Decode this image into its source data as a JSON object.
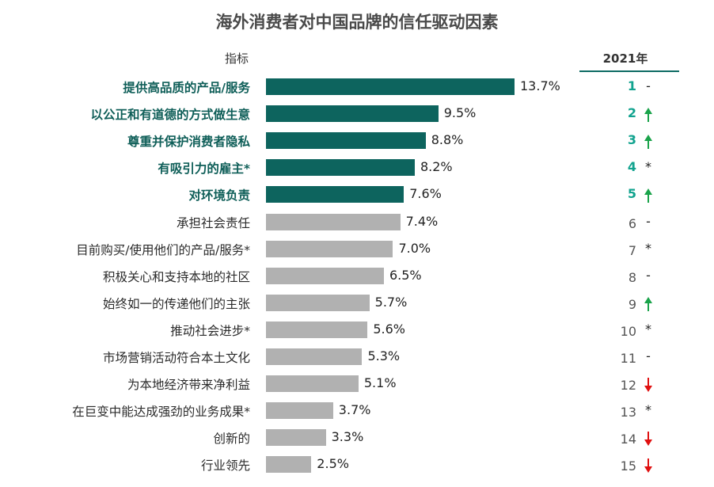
{
  "chart_data": {
    "type": "bar",
    "title": "海外消费者对中国品牌的信任驱动因素",
    "column_header": "指标",
    "rank_header": "2021年",
    "xlim": [
      0,
      15
    ],
    "categories": [
      "提供高品质的产品/服务",
      "以公正和有道德的方式做生意",
      "尊重并保护消费者隐私",
      "有吸引力的雇主*",
      "对环境负责",
      "承担社会责任",
      "目前购买/使用他们的产品/服务*",
      "积极关心和支持本地的社区",
      "始终如一的传递他们的主张",
      "推动社会进步*",
      "市场营销活动符合本土文化",
      "为本地经济带来净利益",
      "在巨变中能达成强劲的业务成果*",
      "创新的",
      "行业领先"
    ],
    "values": [
      13.7,
      9.5,
      8.8,
      8.2,
      7.6,
      7.4,
      7.0,
      6.5,
      5.7,
      5.6,
      5.3,
      5.1,
      3.7,
      3.3,
      2.5
    ],
    "value_labels": [
      "13.7%",
      "9.5%",
      "8.8%",
      "8.2%",
      "7.6%",
      "7.4%",
      "7.0%",
      "6.5%",
      "5.7%",
      "5.6%",
      "5.3%",
      "5.1%",
      "3.7%",
      "3.3%",
      "2.5%"
    ],
    "ranks": [
      "1",
      "2",
      "3",
      "4",
      "5",
      "6",
      "7",
      "8",
      "9",
      "10",
      "11",
      "12",
      "13",
      "14",
      "15"
    ],
    "trends": [
      "same",
      "up",
      "up",
      "new",
      "up",
      "same",
      "new",
      "same",
      "up",
      "new",
      "same",
      "down",
      "new",
      "down",
      "down"
    ],
    "trend_symbols": {
      "same": "-",
      "new": "*"
    },
    "highlight_top_n": 5
  },
  "colors": {
    "highlight_bar": "#0d645e",
    "normal_bar": "#b1b1b1",
    "highlight_label": "#0e5e58",
    "highlight_rank": "#12a38f",
    "up_arrow": "#1aa34a",
    "down_arrow": "#e01010"
  }
}
